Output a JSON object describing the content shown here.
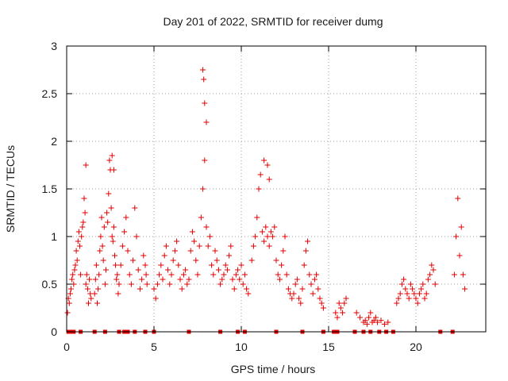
{
  "chart_data": {
    "type": "scatter",
    "title": "Day 201 of 2022, SRMTID for receiver dumg",
    "xlabel": "GPS time / hours",
    "ylabel": "SRMTID / TECUs",
    "xlim": [
      0,
      24
    ],
    "ylim": [
      0,
      3
    ],
    "x_ticks": [
      0,
      5,
      10,
      15,
      20
    ],
    "x_tick_labels": [
      "0",
      "5",
      "10",
      "15",
      "20"
    ],
    "y_ticks": [
      0,
      0.5,
      1,
      1.5,
      2,
      2.5,
      3
    ],
    "y_tick_labels": [
      "0",
      "0.5",
      "1",
      "1.5",
      "2",
      "2.5",
      "3"
    ],
    "grid": true,
    "marker": "plus",
    "series_color": "#e00000",
    "series": [
      {
        "name": "SRMTID",
        "x": [
          0.05,
          0.1,
          0.15,
          0.2,
          0.25,
          0.3,
          0.35,
          0.4,
          0.45,
          0.5,
          0.55,
          0.6,
          0.65,
          0.7,
          0.75,
          0.8,
          0.85,
          0.9,
          0.95,
          1.0,
          1.05,
          1.1,
          1.15,
          1.2,
          1.25,
          1.3,
          1.35,
          1.4,
          1.6,
          1.65,
          1.7,
          1.75,
          1.8,
          1.85,
          1.9,
          1.95,
          2.0,
          2.05,
          2.1,
          2.15,
          2.2,
          2.25,
          2.3,
          2.35,
          2.4,
          2.45,
          2.5,
          2.55,
          2.6,
          2.65,
          2.7,
          2.75,
          2.8,
          2.85,
          2.9,
          2.95,
          3.0,
          3.1,
          3.2,
          3.3,
          3.4,
          3.5,
          3.6,
          3.7,
          3.8,
          3.9,
          4.0,
          4.1,
          4.2,
          4.3,
          4.4,
          4.5,
          4.55,
          4.6,
          5.0,
          5.1,
          5.2,
          5.3,
          5.4,
          5.5,
          5.6,
          5.7,
          5.8,
          5.9,
          6.0,
          6.1,
          6.2,
          6.3,
          6.4,
          6.5,
          6.6,
          6.7,
          6.8,
          6.9,
          7.0,
          7.1,
          7.2,
          7.3,
          7.4,
          7.5,
          7.6,
          7.7,
          7.8,
          7.9,
          8.0,
          8.1,
          8.2,
          8.3,
          8.4,
          8.5,
          8.6,
          8.7,
          8.8,
          8.9,
          9.0,
          9.1,
          9.2,
          9.3,
          9.4,
          9.5,
          9.6,
          9.7,
          9.8,
          9.9,
          10.0,
          10.1,
          10.2,
          10.3,
          10.4,
          10.6,
          10.7,
          10.8,
          10.9,
          11.0,
          11.1,
          11.2,
          11.3,
          11.4,
          11.5,
          11.6,
          11.7,
          11.8,
          11.9,
          12.0,
          12.1,
          12.2,
          12.3,
          12.4,
          12.5,
          12.6,
          12.7,
          12.8,
          12.9,
          13.0,
          13.1,
          13.2,
          13.3,
          13.4,
          13.5,
          13.6,
          13.7,
          13.8,
          13.9,
          14.0,
          14.1,
          14.2,
          14.3,
          14.4,
          14.5,
          14.6,
          14.7,
          15.4,
          15.5,
          15.6,
          15.7,
          15.8,
          15.9,
          16.0,
          16.6,
          16.8,
          17.0,
          17.1,
          17.2,
          17.3,
          17.4,
          17.5,
          17.6,
          17.7,
          17.8,
          18.0,
          18.2,
          18.4,
          18.9,
          19.0,
          19.1,
          19.2,
          19.3,
          19.4,
          19.5,
          19.6,
          19.7,
          19.8,
          19.9,
          20.0,
          20.1,
          20.2,
          20.3,
          20.4,
          20.5,
          20.6,
          20.7,
          20.8,
          20.9,
          21.0,
          21.1,
          22.2,
          22.3,
          22.4,
          22.5,
          22.6,
          22.7,
          22.8,
          7.8,
          7.85,
          7.9,
          8.0,
          11.3,
          11.5,
          11.6,
          2.6,
          2.7,
          1.1
        ],
        "y": [
          0.2,
          0.35,
          0.3,
          0.4,
          0.45,
          0.55,
          0.6,
          0.5,
          0.65,
          0.7,
          0.85,
          0.75,
          0.95,
          1.05,
          0.9,
          0.6,
          1.0,
          1.1,
          1.15,
          1.4,
          1.25,
          0.5,
          0.6,
          0.45,
          0.3,
          0.55,
          0.4,
          0.35,
          0.4,
          0.55,
          0.7,
          0.3,
          0.45,
          0.6,
          0.85,
          1.0,
          1.2,
          0.9,
          0.75,
          1.1,
          0.5,
          0.65,
          1.25,
          1.15,
          1.45,
          1.8,
          1.7,
          1.3,
          1.0,
          0.95,
          1.1,
          0.8,
          0.7,
          0.55,
          0.6,
          0.4,
          0.5,
          0.7,
          0.9,
          1.05,
          1.2,
          0.85,
          0.6,
          0.5,
          0.75,
          1.3,
          1.0,
          0.65,
          0.45,
          0.55,
          0.8,
          0.7,
          0.6,
          0.5,
          0.45,
          0.35,
          0.5,
          0.6,
          0.7,
          0.55,
          0.8,
          0.9,
          0.65,
          0.5,
          0.6,
          0.75,
          0.85,
          0.95,
          0.7,
          0.55,
          0.45,
          0.6,
          0.65,
          0.5,
          0.55,
          0.85,
          1.05,
          0.95,
          0.75,
          0.6,
          0.9,
          1.2,
          1.5,
          1.8,
          1.1,
          0.9,
          1.0,
          0.7,
          0.6,
          0.85,
          0.75,
          0.65,
          0.5,
          0.55,
          0.6,
          0.7,
          0.65,
          0.8,
          0.9,
          0.55,
          0.45,
          0.6,
          0.65,
          0.55,
          0.7,
          0.5,
          0.6,
          0.45,
          0.4,
          0.75,
          0.9,
          1.0,
          1.2,
          1.5,
          1.65,
          1.05,
          0.95,
          1.1,
          1.0,
          0.9,
          1.05,
          1.0,
          1.1,
          0.75,
          0.6,
          0.55,
          0.7,
          0.85,
          1.0,
          0.6,
          0.45,
          0.4,
          0.35,
          0.4,
          0.5,
          0.55,
          0.35,
          0.3,
          0.45,
          0.7,
          0.85,
          0.95,
          0.6,
          0.5,
          0.4,
          0.55,
          0.6,
          0.45,
          0.35,
          0.3,
          0.25,
          0.2,
          0.15,
          0.3,
          0.25,
          0.2,
          0.3,
          0.35,
          0.2,
          0.15,
          0.1,
          0.12,
          0.08,
          0.15,
          0.2,
          0.1,
          0.12,
          0.15,
          0.1,
          0.12,
          0.08,
          0.1,
          0.3,
          0.35,
          0.4,
          0.5,
          0.55,
          0.45,
          0.4,
          0.35,
          0.5,
          0.45,
          0.4,
          0.35,
          0.3,
          0.4,
          0.45,
          0.5,
          0.35,
          0.4,
          0.55,
          0.6,
          0.7,
          0.65,
          0.5,
          0.6,
          1.0,
          1.4,
          0.8,
          1.1,
          0.6,
          0.45,
          2.75,
          2.65,
          2.4,
          2.2,
          1.8,
          1.75,
          1.6,
          1.85,
          1.7,
          1.75
        ],
        "flag_x": [
          0.1,
          0.2,
          0.4,
          0.8,
          1.6,
          2.2,
          3.0,
          3.3,
          3.5,
          3.9,
          4.5,
          5.0,
          7.0,
          8.8,
          9.8,
          10.2,
          12.0,
          13.5,
          14.7,
          15.3,
          15.5,
          16.5,
          17.0,
          17.4,
          17.9,
          18.3,
          18.7,
          21.4,
          22.1
        ],
        "flag_y": 0
      }
    ]
  }
}
